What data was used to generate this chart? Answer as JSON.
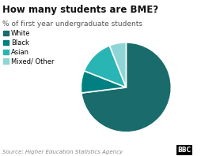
{
  "title": "How many students are BME?",
  "subtitle": "% of first year undergraduate students",
  "source": "Source: Higher Education Statistics Agency",
  "labels": [
    "White",
    "Black",
    "Asian",
    "Mixed/ Other"
  ],
  "values": [
    73,
    8,
    13,
    6
  ],
  "colors": [
    "#1a6b6b",
    "#008080",
    "#2ab5b5",
    "#90d5d5"
  ],
  "background_color": "#ffffff",
  "title_fontsize": 8.5,
  "subtitle_fontsize": 6.5,
  "legend_fontsize": 6,
  "source_fontsize": 5
}
